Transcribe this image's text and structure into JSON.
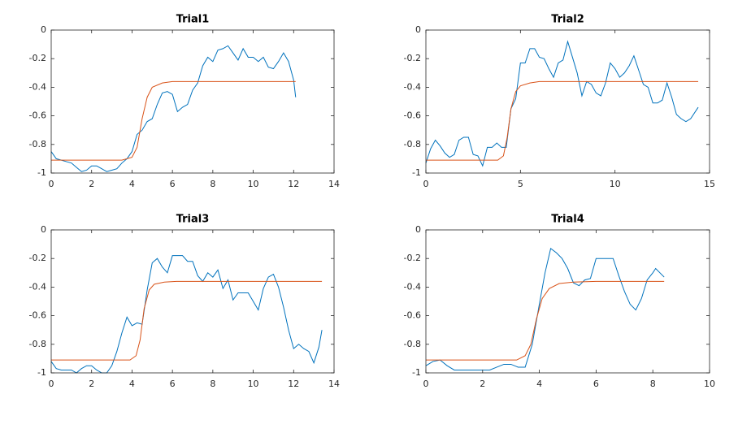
{
  "chart_data": [
    {
      "type": "line",
      "title": "Trial1",
      "xlim": [
        0,
        14
      ],
      "ylim": [
        -1,
        0
      ],
      "xticks": [
        0,
        2,
        4,
        6,
        8,
        10,
        12,
        14
      ],
      "yticks": [
        -1,
        -0.8,
        -0.6,
        -0.4,
        -0.2,
        0
      ],
      "series": [
        {
          "color": "#0072bd",
          "x": [
            0,
            0.25,
            0.5,
            0.75,
            1,
            1.25,
            1.5,
            1.75,
            2,
            2.25,
            2.5,
            2.75,
            3,
            3.25,
            3.5,
            3.75,
            4,
            4.25,
            4.5,
            4.75,
            5,
            5.25,
            5.5,
            5.75,
            6,
            6.25,
            6.5,
            6.75,
            7,
            7.25,
            7.5,
            7.75,
            8,
            8.25,
            8.5,
            8.75,
            9,
            9.25,
            9.5,
            9.75,
            10,
            10.25,
            10.5,
            10.75,
            11,
            11.25,
            11.5,
            11.75,
            12,
            12.1
          ],
          "values": [
            -0.85,
            -0.9,
            -0.91,
            -0.92,
            -0.93,
            -0.96,
            -0.99,
            -0.98,
            -0.95,
            -0.95,
            -0.97,
            -0.99,
            -0.98,
            -0.97,
            -0.93,
            -0.9,
            -0.85,
            -0.73,
            -0.7,
            -0.64,
            -0.62,
            -0.52,
            -0.44,
            -0.43,
            -0.45,
            -0.57,
            -0.54,
            -0.52,
            -0.42,
            -0.37,
            -0.25,
            -0.19,
            -0.22,
            -0.14,
            -0.13,
            -0.11,
            -0.16,
            -0.21,
            -0.13,
            -0.19,
            -0.19,
            -0.22,
            -0.19,
            -0.26,
            -0.27,
            -0.22,
            -0.16,
            -0.22,
            -0.35,
            -0.47
          ]
        },
        {
          "color": "#d95319",
          "x": [
            0,
            3.5,
            4,
            4.25,
            4.5,
            4.75,
            5,
            5.5,
            6,
            12.1
          ],
          "values": [
            -0.91,
            -0.91,
            -0.89,
            -0.82,
            -0.62,
            -0.47,
            -0.4,
            -0.37,
            -0.36,
            -0.36
          ]
        }
      ]
    },
    {
      "type": "line",
      "title": "Trial2",
      "xlim": [
        0,
        15
      ],
      "ylim": [
        -1,
        0
      ],
      "xticks": [
        0,
        5,
        10,
        15
      ],
      "yticks": [
        -1,
        -0.8,
        -0.6,
        -0.4,
        -0.2,
        0
      ],
      "series": [
        {
          "color": "#0072bd",
          "x": [
            0,
            0.25,
            0.5,
            0.75,
            1,
            1.25,
            1.5,
            1.75,
            2,
            2.25,
            2.5,
            2.75,
            3,
            3.25,
            3.5,
            3.75,
            4,
            4.25,
            4.5,
            4.75,
            5,
            5.25,
            5.5,
            5.75,
            6,
            6.25,
            6.5,
            6.75,
            7,
            7.25,
            7.5,
            7.75,
            8,
            8.25,
            8.5,
            8.75,
            9,
            9.25,
            9.5,
            9.75,
            10,
            10.25,
            10.5,
            10.75,
            11,
            11.25,
            11.5,
            11.75,
            12,
            12.25,
            12.5,
            12.75,
            13,
            13.25,
            13.5,
            13.75,
            14,
            14.4
          ],
          "values": [
            -0.93,
            -0.83,
            -0.77,
            -0.81,
            -0.86,
            -0.89,
            -0.87,
            -0.77,
            -0.75,
            -0.75,
            -0.87,
            -0.88,
            -0.95,
            -0.82,
            -0.82,
            -0.79,
            -0.82,
            -0.82,
            -0.55,
            -0.48,
            -0.23,
            -0.23,
            -0.13,
            -0.13,
            -0.19,
            -0.2,
            -0.27,
            -0.33,
            -0.23,
            -0.21,
            -0.08,
            -0.19,
            -0.3,
            -0.46,
            -0.36,
            -0.38,
            -0.44,
            -0.46,
            -0.37,
            -0.23,
            -0.27,
            -0.33,
            -0.3,
            -0.25,
            -0.18,
            -0.28,
            -0.38,
            -0.4,
            -0.51,
            -0.51,
            -0.49,
            -0.37,
            -0.47,
            -0.59,
            -0.62,
            -0.64,
            -0.62,
            -0.54
          ]
        },
        {
          "color": "#d95319",
          "x": [
            0,
            3.8,
            4.1,
            4.3,
            4.5,
            4.75,
            5,
            5.5,
            6,
            14.4
          ],
          "values": [
            -0.91,
            -0.91,
            -0.88,
            -0.75,
            -0.55,
            -0.43,
            -0.39,
            -0.37,
            -0.36,
            -0.36
          ]
        }
      ]
    },
    {
      "type": "line",
      "title": "Trial3",
      "xlim": [
        0,
        14
      ],
      "ylim": [
        -1,
        0
      ],
      "xticks": [
        0,
        2,
        4,
        6,
        8,
        10,
        12,
        14
      ],
      "yticks": [
        -1,
        -0.8,
        -0.6,
        -0.4,
        -0.2,
        0
      ],
      "series": [
        {
          "color": "#0072bd",
          "x": [
            0,
            0.25,
            0.5,
            0.75,
            1,
            1.25,
            1.5,
            1.75,
            2,
            2.25,
            2.5,
            2.75,
            3,
            3.25,
            3.5,
            3.75,
            4,
            4.25,
            4.5,
            4.75,
            5,
            5.25,
            5.5,
            5.75,
            6,
            6.25,
            6.5,
            6.75,
            7,
            7.25,
            7.5,
            7.75,
            8,
            8.25,
            8.5,
            8.75,
            9,
            9.25,
            9.5,
            9.75,
            10,
            10.25,
            10.5,
            10.75,
            11,
            11.25,
            11.5,
            11.75,
            12,
            12.25,
            12.5,
            12.75,
            13,
            13.25,
            13.4
          ],
          "values": [
            -0.92,
            -0.97,
            -0.98,
            -0.98,
            -0.98,
            -1,
            -0.97,
            -0.95,
            -0.95,
            -0.98,
            -1,
            -1,
            -0.95,
            -0.85,
            -0.72,
            -0.61,
            -0.67,
            -0.65,
            -0.66,
            -0.42,
            -0.23,
            -0.2,
            -0.26,
            -0.3,
            -0.18,
            -0.18,
            -0.18,
            -0.22,
            -0.22,
            -0.32,
            -0.36,
            -0.3,
            -0.33,
            -0.28,
            -0.41,
            -0.35,
            -0.49,
            -0.44,
            -0.44,
            -0.44,
            -0.5,
            -0.56,
            -0.41,
            -0.33,
            -0.31,
            -0.4,
            -0.54,
            -0.7,
            -0.83,
            -0.8,
            -0.83,
            -0.85,
            -0.93,
            -0.82,
            -0.7
          ]
        },
        {
          "color": "#d95319",
          "x": [
            0,
            3.9,
            4.2,
            4.4,
            4.6,
            4.85,
            5.1,
            5.6,
            6.2,
            13.4
          ],
          "values": [
            -0.91,
            -0.91,
            -0.88,
            -0.77,
            -0.55,
            -0.42,
            -0.38,
            -0.365,
            -0.36,
            -0.36
          ]
        }
      ]
    },
    {
      "type": "line",
      "title": "Trial4",
      "xlim": [
        0,
        10
      ],
      "ylim": [
        -1,
        0
      ],
      "xticks": [
        0,
        2,
        4,
        6,
        8,
        10
      ],
      "yticks": [
        -1,
        -0.8,
        -0.6,
        -0.4,
        -0.2,
        0
      ],
      "series": [
        {
          "color": "#0072bd",
          "x": [
            0,
            0.25,
            0.5,
            0.75,
            1,
            1.5,
            2,
            2.25,
            2.5,
            2.75,
            3,
            3.25,
            3.5,
            3.75,
            4,
            4.2,
            4.4,
            4.6,
            4.8,
            5,
            5.2,
            5.4,
            5.6,
            5.8,
            6,
            6.3,
            6.6,
            6.8,
            7,
            7.2,
            7.4,
            7.6,
            7.8,
            8,
            8.1,
            8.4
          ],
          "values": [
            -0.95,
            -0.92,
            -0.91,
            -0.95,
            -0.98,
            -0.98,
            -0.98,
            -0.98,
            -0.96,
            -0.94,
            -0.94,
            -0.96,
            -0.96,
            -0.8,
            -0.52,
            -0.3,
            -0.13,
            -0.16,
            -0.2,
            -0.27,
            -0.37,
            -0.39,
            -0.35,
            -0.34,
            -0.2,
            -0.2,
            -0.2,
            -0.32,
            -0.43,
            -0.52,
            -0.56,
            -0.48,
            -0.35,
            -0.3,
            -0.27,
            -0.33
          ]
        },
        {
          "color": "#d95319",
          "x": [
            0,
            3.2,
            3.5,
            3.7,
            3.9,
            4.1,
            4.35,
            4.7,
            5.2,
            6,
            8.4
          ],
          "values": [
            -0.91,
            -0.91,
            -0.88,
            -0.8,
            -0.62,
            -0.48,
            -0.41,
            -0.375,
            -0.365,
            -0.36,
            -0.36
          ]
        }
      ]
    }
  ]
}
